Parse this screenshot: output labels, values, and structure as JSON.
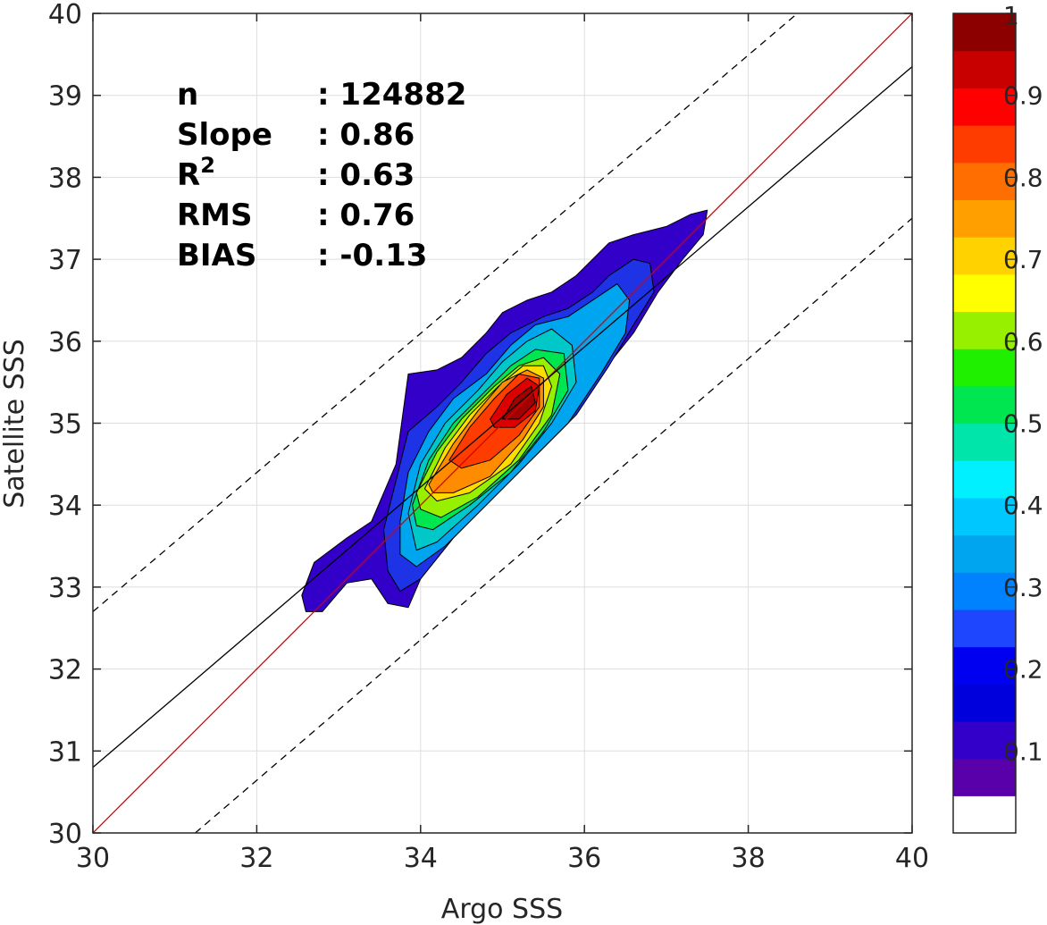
{
  "chart_data": {
    "type": "contour-density",
    "xlabel": "Argo SSS",
    "ylabel": "Satellite SSS",
    "xlim": [
      30,
      40
    ],
    "ylim": [
      30,
      40
    ],
    "xticks": [
      "30",
      "32",
      "34",
      "36",
      "38",
      "40"
    ],
    "yticks": [
      "30",
      "31",
      "32",
      "33",
      "34",
      "35",
      "36",
      "37",
      "38",
      "39",
      "40"
    ],
    "grid": true,
    "stats": [
      {
        "label": "n",
        "value": ": 124882"
      },
      {
        "label": "Slope",
        "value": ": 0.86"
      },
      {
        "label": "R",
        "sup": "2",
        "value": ": 0.63"
      },
      {
        "label": "RMS",
        "value": ": 0.76"
      },
      {
        "label": "BIAS",
        "value": ": -0.13"
      }
    ],
    "lines": {
      "one_to_one": {
        "x": [
          30,
          40
        ],
        "y": [
          30,
          40
        ],
        "color": "#d40000",
        "style": "solid"
      },
      "fit": {
        "x": [
          30,
          40
        ],
        "y": [
          30.8,
          39.35
        ],
        "color": "#000000",
        "style": "solid"
      },
      "upper_bound": {
        "x": [
          30,
          38.6
        ],
        "y": [
          32.7,
          40
        ],
        "color": "#000000",
        "style": "dashed"
      },
      "lower_bound": {
        "x": [
          31.25,
          40
        ],
        "y": [
          30,
          37.5
        ],
        "color": "#000000",
        "style": "dashed"
      }
    },
    "density_peak": {
      "x": 35.2,
      "y": 35.3
    },
    "contour_levels": [
      {
        "level": 0.05,
        "color": "#3200c8",
        "polygon": [
          [
            32.55,
            32.9
          ],
          [
            32.7,
            33.3
          ],
          [
            33.1,
            33.6
          ],
          [
            33.4,
            33.8
          ],
          [
            33.7,
            34.5
          ],
          [
            33.85,
            35.6
          ],
          [
            34.2,
            35.65
          ],
          [
            34.5,
            35.8
          ],
          [
            34.8,
            36.1
          ],
          [
            35.0,
            36.35
          ],
          [
            35.3,
            36.5
          ],
          [
            35.6,
            36.6
          ],
          [
            35.9,
            36.8
          ],
          [
            36.1,
            37.0
          ],
          [
            36.3,
            37.2
          ],
          [
            36.6,
            37.3
          ],
          [
            37.0,
            37.4
          ],
          [
            37.3,
            37.55
          ],
          [
            37.5,
            37.6
          ],
          [
            37.45,
            37.3
          ],
          [
            37.2,
            37.0
          ],
          [
            36.9,
            36.6
          ],
          [
            36.6,
            36.1
          ],
          [
            36.2,
            35.6
          ],
          [
            35.8,
            35.0
          ],
          [
            35.4,
            34.6
          ],
          [
            34.9,
            34.2
          ],
          [
            34.4,
            33.6
          ],
          [
            34.0,
            33.1
          ],
          [
            33.85,
            32.75
          ],
          [
            33.6,
            32.8
          ],
          [
            33.4,
            33.1
          ],
          [
            33.1,
            33.05
          ],
          [
            32.8,
            32.7
          ],
          [
            32.6,
            32.7
          ]
        ]
      },
      {
        "level": 0.15,
        "color": "#1e32e6",
        "polygon": [
          [
            33.55,
            33.7
          ],
          [
            33.7,
            34.3
          ],
          [
            33.85,
            34.9
          ],
          [
            34.2,
            35.2
          ],
          [
            34.5,
            35.5
          ],
          [
            34.8,
            35.85
          ],
          [
            35.1,
            36.1
          ],
          [
            35.5,
            36.3
          ],
          [
            35.8,
            36.4
          ],
          [
            36.1,
            36.6
          ],
          [
            36.3,
            36.8
          ],
          [
            36.6,
            37.0
          ],
          [
            36.8,
            36.95
          ],
          [
            36.85,
            36.6
          ],
          [
            36.6,
            36.2
          ],
          [
            36.3,
            35.7
          ],
          [
            35.9,
            35.1
          ],
          [
            35.4,
            34.6
          ],
          [
            34.9,
            34.1
          ],
          [
            34.4,
            33.6
          ],
          [
            34.0,
            33.1
          ],
          [
            33.75,
            32.95
          ],
          [
            33.6,
            33.2
          ]
        ]
      },
      {
        "level": 0.25,
        "color": "#00a5f0",
        "polygon": [
          [
            33.75,
            33.8
          ],
          [
            33.85,
            34.4
          ],
          [
            34.1,
            34.9
          ],
          [
            34.4,
            35.3
          ],
          [
            34.8,
            35.6
          ],
          [
            35.1,
            35.95
          ],
          [
            35.4,
            36.2
          ],
          [
            35.8,
            36.3
          ],
          [
            36.1,
            36.5
          ],
          [
            36.4,
            36.7
          ],
          [
            36.55,
            36.5
          ],
          [
            36.5,
            36.1
          ],
          [
            36.2,
            35.6
          ],
          [
            35.8,
            35.0
          ],
          [
            35.3,
            34.5
          ],
          [
            34.8,
            34.0
          ],
          [
            34.3,
            33.5
          ],
          [
            33.95,
            33.25
          ],
          [
            33.75,
            33.4
          ]
        ]
      },
      {
        "level": 0.35,
        "color": "#00c8c8",
        "polygon": [
          [
            33.85,
            33.9
          ],
          [
            34.0,
            34.5
          ],
          [
            34.3,
            35.0
          ],
          [
            34.7,
            35.4
          ],
          [
            35.0,
            35.75
          ],
          [
            35.3,
            36.0
          ],
          [
            35.6,
            36.15
          ],
          [
            35.85,
            35.95
          ],
          [
            35.9,
            35.5
          ],
          [
            35.6,
            35.0
          ],
          [
            35.2,
            34.5
          ],
          [
            34.7,
            34.0
          ],
          [
            34.2,
            33.55
          ],
          [
            33.95,
            33.45
          ]
        ]
      },
      {
        "level": 0.45,
        "color": "#00e650",
        "polygon": [
          [
            33.9,
            34.0
          ],
          [
            34.1,
            34.55
          ],
          [
            34.4,
            35.0
          ],
          [
            34.8,
            35.4
          ],
          [
            35.1,
            35.7
          ],
          [
            35.4,
            35.9
          ],
          [
            35.75,
            35.85
          ],
          [
            35.8,
            35.4
          ],
          [
            35.5,
            34.9
          ],
          [
            35.1,
            34.4
          ],
          [
            34.6,
            34.0
          ],
          [
            34.15,
            33.7
          ],
          [
            33.95,
            33.75
          ]
        ]
      },
      {
        "level": 0.55,
        "color": "#96f000",
        "polygon": [
          [
            33.95,
            34.15
          ],
          [
            34.2,
            34.65
          ],
          [
            34.5,
            35.05
          ],
          [
            34.9,
            35.45
          ],
          [
            35.2,
            35.7
          ],
          [
            35.5,
            35.8
          ],
          [
            35.7,
            35.6
          ],
          [
            35.6,
            35.1
          ],
          [
            35.2,
            34.55
          ],
          [
            34.7,
            34.1
          ],
          [
            34.25,
            33.85
          ],
          [
            34.0,
            33.95
          ]
        ]
      },
      {
        "level": 0.65,
        "color": "#ffdc00",
        "polygon": [
          [
            34.05,
            34.2
          ],
          [
            34.3,
            34.7
          ],
          [
            34.6,
            35.1
          ],
          [
            34.95,
            35.45
          ],
          [
            35.25,
            35.7
          ],
          [
            35.5,
            35.7
          ],
          [
            35.6,
            35.45
          ],
          [
            35.45,
            35.0
          ],
          [
            35.1,
            34.5
          ],
          [
            34.6,
            34.15
          ],
          [
            34.2,
            34.05
          ]
        ]
      },
      {
        "level": 0.75,
        "color": "#ff8c00",
        "polygon": [
          [
            34.1,
            34.25
          ],
          [
            34.4,
            34.75
          ],
          [
            34.7,
            35.15
          ],
          [
            35.0,
            35.5
          ],
          [
            35.3,
            35.65
          ],
          [
            35.5,
            35.55
          ],
          [
            35.5,
            35.2
          ],
          [
            35.25,
            34.8
          ],
          [
            34.85,
            34.35
          ],
          [
            34.4,
            34.15
          ],
          [
            34.15,
            34.15
          ]
        ]
      },
      {
        "level": 0.85,
        "color": "#ff3c00",
        "polygon": [
          [
            34.35,
            34.55
          ],
          [
            34.6,
            34.95
          ],
          [
            34.9,
            35.3
          ],
          [
            35.2,
            35.6
          ],
          [
            35.45,
            35.55
          ],
          [
            35.45,
            35.2
          ],
          [
            35.2,
            34.85
          ],
          [
            34.85,
            34.55
          ],
          [
            34.5,
            34.45
          ]
        ]
      },
      {
        "level": 0.92,
        "color": "#dc0000",
        "polygon": [
          [
            34.85,
            35.05
          ],
          [
            35.05,
            35.35
          ],
          [
            35.3,
            35.55
          ],
          [
            35.45,
            35.45
          ],
          [
            35.4,
            35.15
          ],
          [
            35.15,
            34.95
          ],
          [
            34.9,
            34.95
          ]
        ]
      },
      {
        "level": 0.98,
        "color": "#a00000",
        "polygon": [
          [
            35.0,
            35.05
          ],
          [
            35.15,
            35.3
          ],
          [
            35.35,
            35.45
          ],
          [
            35.4,
            35.25
          ],
          [
            35.2,
            35.05
          ]
        ]
      }
    ],
    "colorbar": {
      "range": [
        0,
        1
      ],
      "tick_labels": [
        "0.1",
        "0.2",
        "0.3",
        "0.4",
        "0.5",
        "0.6",
        "0.7",
        "0.8",
        "0.9",
        "1"
      ],
      "tick_values": [
        0.1,
        0.2,
        0.3,
        0.4,
        0.5,
        0.6,
        0.7,
        0.8,
        0.9,
        1.0
      ],
      "colors": [
        "#ffffff",
        "#5a00aa",
        "#3200c8",
        "#0000dc",
        "#0000f0",
        "#1e46ff",
        "#0082ff",
        "#00a5f0",
        "#00c8ff",
        "#00f0ff",
        "#00e6aa",
        "#00e650",
        "#1ef000",
        "#96f000",
        "#ffff00",
        "#ffd200",
        "#ffa000",
        "#ff6e00",
        "#ff3c00",
        "#ff0000",
        "#c80000",
        "#8c0000"
      ]
    }
  }
}
